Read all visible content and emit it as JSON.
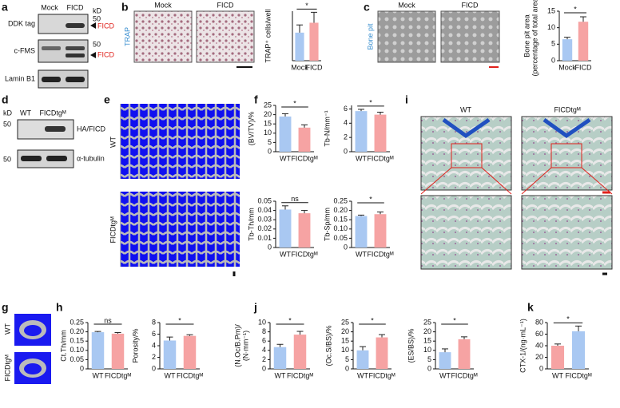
{
  "panels": [
    "a",
    "b",
    "c",
    "d",
    "e",
    "f",
    "g",
    "h",
    "i",
    "j",
    "k"
  ],
  "blot_a": {
    "columns": [
      "Mock",
      "FICD"
    ],
    "kd_label": "kD",
    "rows": [
      {
        "label": "DDK tag",
        "marker": 50,
        "arrow": "FICD"
      },
      {
        "label": "c-FMS",
        "marker": 50,
        "arrow": "FICD"
      },
      {
        "label": "Lamin B1"
      }
    ]
  },
  "images_b": {
    "columns": [
      "Mock",
      "FICD"
    ],
    "stain": "TRAP"
  },
  "images_c": {
    "columns": [
      "Mock",
      "FICD"
    ],
    "stain": "Bone pit"
  },
  "blot_d": {
    "kd_label": "kD",
    "columns": [
      "WT",
      "FICDtgᴹ"
    ],
    "rows": [
      {
        "label": "HA/FICD",
        "marker": 50
      },
      {
        "label": "α-tubulin",
        "marker": 50
      }
    ]
  },
  "images_e": {
    "rows": [
      "WT",
      "FICDtgᴹ"
    ]
  },
  "images_g": {
    "rows": [
      "WT",
      "FICDtgᴹ"
    ]
  },
  "images_i": {
    "columns": [
      "WT",
      "FICDtgᴹ"
    ]
  },
  "chart_data": [
    {
      "type": "bar",
      "ylabel": [
        "TRAP⁺ cells/well"
      ],
      "categories": [
        "Mock",
        "FICD"
      ],
      "values": [
        510,
        690
      ],
      "errors": [
        140,
        190
      ],
      "colors": [
        "#a9c8f2",
        "#f6a3a3"
      ],
      "ylim": [
        0,
        900
      ],
      "significance": "*"
    },
    {
      "type": "bar",
      "ylabel": [
        "Bone pit area",
        "(percentage of total area)"
      ],
      "categories": [
        "Mock",
        "FICD"
      ],
      "values": [
        6.5,
        11.8
      ],
      "errors": [
        0.6,
        1.5
      ],
      "colors": [
        "#a9c8f2",
        "#f6a3a3"
      ],
      "ylim": [
        0,
        15
      ],
      "yticks": [
        0,
        5,
        10,
        15
      ],
      "significance": "*"
    },
    {
      "type": "bar",
      "ylabel": [
        "(BV/TV)/%"
      ],
      "categories": [
        "WT",
        "FICDtgᴹ"
      ],
      "values": [
        19,
        13
      ],
      "errors": [
        1.5,
        1.5
      ],
      "colors": [
        "#a9c8f2",
        "#f6a3a3"
      ],
      "ylim": [
        0,
        25
      ],
      "yticks": [
        0,
        5,
        10,
        15,
        20,
        25
      ],
      "significance": "*"
    },
    {
      "type": "bar",
      "ylabel": [
        "Tb-N/mm⁻¹"
      ],
      "categories": [
        "WT",
        "FICDtgᴹ"
      ],
      "values": [
        5.7,
        5.2
      ],
      "errors": [
        0.25,
        0.35
      ],
      "colors": [
        "#a9c8f2",
        "#f6a3a3"
      ],
      "ylim": [
        0,
        6.5
      ],
      "yticks": [
        0,
        2,
        4,
        6
      ],
      "significance": "*"
    },
    {
      "type": "bar",
      "ylabel": [
        "Tb-Th/mm"
      ],
      "categories": [
        "WT",
        "FICDtgᴹ"
      ],
      "values": [
        0.041,
        0.037
      ],
      "errors": [
        0.004,
        0.003
      ],
      "colors": [
        "#a9c8f2",
        "#f6a3a3"
      ],
      "ylim": [
        0,
        0.05
      ],
      "yticks": [
        0,
        0.01,
        0.02,
        0.03,
        0.04,
        0.05
      ],
      "significance": "ns"
    },
    {
      "type": "bar",
      "ylabel": [
        "Tb-Sp/mm"
      ],
      "categories": [
        "WT",
        "FICDtgᴹ"
      ],
      "values": [
        0.17,
        0.18
      ],
      "errors": [
        0.005,
        0.012
      ],
      "colors": [
        "#a9c8f2",
        "#f6a3a3"
      ],
      "ylim": [
        0,
        0.25
      ],
      "yticks": [
        0,
        0.05,
        {
          "value": 0.1,
          "label": "0.10"
        },
        0.15,
        {
          "value": 0.2,
          "label": "0.20"
        },
        0.25
      ],
      "significance": "*"
    },
    {
      "type": "bar",
      "ylabel": [
        "Ct.Th/mm"
      ],
      "categories": [
        "WT",
        "FICDtgᴹ"
      ],
      "values": [
        0.198,
        0.19
      ],
      "errors": [
        0.004,
        0.006
      ],
      "colors": [
        "#a9c8f2",
        "#f6a3a3"
      ],
      "ylim": [
        0,
        0.25
      ],
      "yticks": [
        0,
        0.05,
        {
          "value": 0.1,
          "label": "0.10"
        },
        0.15,
        {
          "value": 0.2,
          "label": "0.20"
        },
        0.25
      ],
      "significance": "ns"
    },
    {
      "type": "bar",
      "ylabel": [
        "Porosity/%"
      ],
      "categories": [
        "WT",
        "FICDtgᴹ"
      ],
      "values": [
        4.9,
        5.7
      ],
      "errors": [
        0.6,
        0.2
      ],
      "colors": [
        "#a9c8f2",
        "#f6a3a3"
      ],
      "ylim": [
        0,
        8
      ],
      "yticks": [
        0,
        2,
        4,
        6,
        8
      ],
      "significance": "*"
    },
    {
      "type": "bar",
      "ylabel": [
        "(N.Oc/B.Pm)/",
        "(N·mm⁻¹)"
      ],
      "categories": [
        "WT",
        "FICDtgᴹ"
      ],
      "values": [
        4.7,
        7.4
      ],
      "errors": [
        0.6,
        0.7
      ],
      "colors": [
        "#a9c8f2",
        "#f6a3a3"
      ],
      "ylim": [
        0,
        10
      ],
      "yticks": [
        0,
        2,
        4,
        6,
        8,
        10
      ],
      "significance": "*"
    },
    {
      "type": "bar",
      "ylabel": [
        "(Oc.S/BS)/%"
      ],
      "categories": [
        "WT",
        "FICDtgᴹ"
      ],
      "values": [
        10,
        17
      ],
      "errors": [
        2,
        1.5
      ],
      "colors": [
        "#a9c8f2",
        "#f6a3a3"
      ],
      "ylim": [
        0,
        25
      ],
      "yticks": [
        0,
        5,
        10,
        15,
        20,
        25
      ],
      "significance": "*"
    },
    {
      "type": "bar",
      "ylabel": [
        "(ES/BS)/%"
      ],
      "categories": [
        "WT",
        "FICDtgᴹ"
      ],
      "values": [
        9,
        16
      ],
      "errors": [
        1.8,
        1.3
      ],
      "colors": [
        "#a9c8f2",
        "#f6a3a3"
      ],
      "ylim": [
        0,
        25
      ],
      "yticks": [
        0,
        5,
        10,
        15,
        20,
        25
      ],
      "significance": "*"
    },
    {
      "type": "bar",
      "ylabel": [
        "CTX-1/(ng·mL⁻¹)"
      ],
      "categories": [
        "WT",
        "FICDtgᴹ"
      ],
      "values": [
        40,
        65
      ],
      "errors": [
        3,
        9
      ],
      "colors": [
        "#f6a3a3",
        "#a9c8f2"
      ],
      "ylim": [
        0,
        80
      ],
      "yticks": [
        0,
        20,
        40,
        60,
        80
      ],
      "significance": "*"
    }
  ]
}
